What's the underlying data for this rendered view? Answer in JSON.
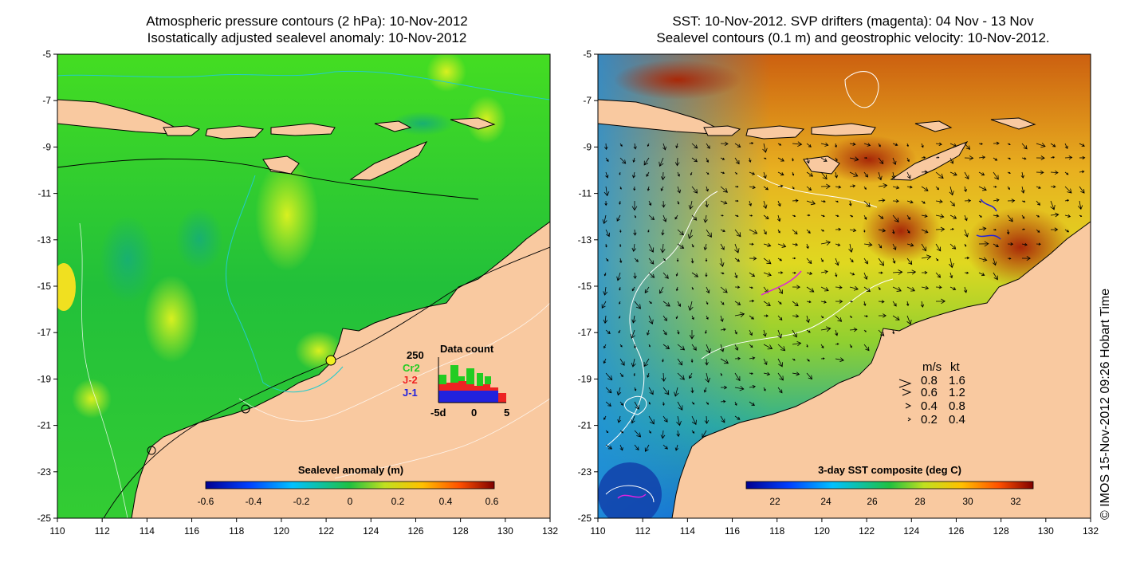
{
  "left_panel": {
    "title_line1": "Atmospheric pressure contours (2 hPa): 10-Nov-2012",
    "title_line2": "Isostatically adjusted sealevel anomaly: 10-Nov-2012",
    "colorbar_title": "Sealevel anomaly (m)",
    "colorbar_ticks": [
      "-0.6",
      "-0.4",
      "-0.2",
      "0",
      "0.2",
      "0.4",
      "0.6"
    ],
    "data_count": {
      "title": "Data count",
      "max_label": "250",
      "missions": [
        {
          "label": "Cr2",
          "color": "#22cc22"
        },
        {
          "label": "J-2",
          "color": "#ee2222"
        },
        {
          "label": "J-1",
          "color": "#2222dd"
        }
      ],
      "x_ticks": [
        "-5d",
        "0",
        "5"
      ]
    }
  },
  "right_panel": {
    "title_line1": "SST: 10-Nov-2012. SVP drifters (magenta): 04 Nov - 13 Nov",
    "title_line2": "Sealevel contours (0.1 m) and geostrophic velocity: 10-Nov-2012.",
    "colorbar_title": "3-day SST composite (deg C)",
    "colorbar_ticks": [
      "22",
      "24",
      "26",
      "28",
      "30",
      "32"
    ],
    "velocity_legend": {
      "header_ms": "m/s",
      "header_kt": "kt",
      "rows": [
        {
          "ms": "0.8",
          "kt": "1.6"
        },
        {
          "ms": "0.6",
          "kt": "1.2"
        },
        {
          "ms": "0.4",
          "kt": "0.8"
        },
        {
          "ms": "0.2",
          "kt": "0.4"
        }
      ]
    }
  },
  "axes": {
    "x_ticks": [
      "110",
      "112",
      "114",
      "116",
      "118",
      "120",
      "122",
      "124",
      "126",
      "128",
      "130",
      "132"
    ],
    "y_ticks": [
      "-5",
      "-7",
      "-9",
      "-11",
      "-13",
      "-15",
      "-17",
      "-19",
      "-21",
      "-23",
      "-25"
    ]
  },
  "credit": "© IMOS 15-Nov-2012 09:26 Hobart Time",
  "colors": {
    "land": "#f9c9a0",
    "sla_base": "#33cc33",
    "sst_warm": "#cc6600",
    "sst_cool": "#22aaee"
  }
}
